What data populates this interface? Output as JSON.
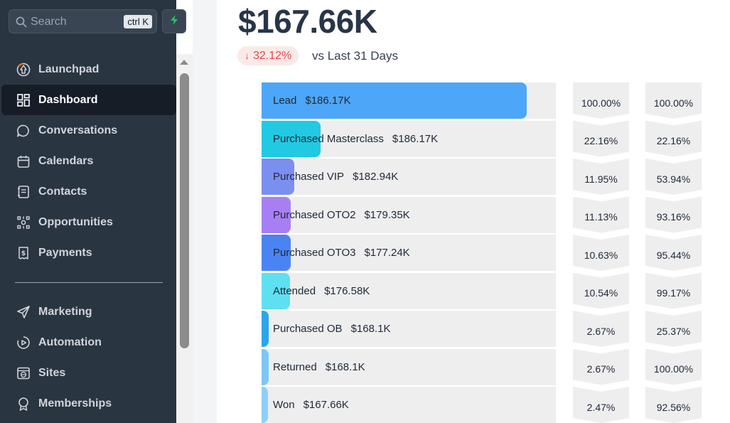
{
  "search": {
    "label": "Search",
    "shortcut": "ctrl K"
  },
  "nav": {
    "primary": [
      {
        "label": "Launchpad",
        "icon": "launchpad-icon",
        "active": false
      },
      {
        "label": "Dashboard",
        "icon": "dashboard-icon",
        "active": true
      },
      {
        "label": "Conversations",
        "icon": "chat-icon",
        "active": false
      },
      {
        "label": "Calendars",
        "icon": "calendar-icon",
        "active": false
      },
      {
        "label": "Contacts",
        "icon": "contacts-icon",
        "active": false
      },
      {
        "label": "Opportunities",
        "icon": "opportunities-icon",
        "active": false
      },
      {
        "label": "Payments",
        "icon": "payments-icon",
        "active": false
      }
    ],
    "secondary": [
      {
        "label": "Marketing",
        "icon": "send-icon",
        "active": false
      },
      {
        "label": "Automation",
        "icon": "automation-icon",
        "active": false
      },
      {
        "label": "Sites",
        "icon": "globe-icon",
        "active": false
      },
      {
        "label": "Memberships",
        "icon": "badge-icon",
        "active": false
      }
    ]
  },
  "summary": {
    "total": "$167.66K",
    "change": "32.12%",
    "change_direction": "down",
    "comparison": "vs Last 31 Days"
  },
  "colors": {
    "accent_down": "#e5484d",
    "sidebar_bg": "#2a3542",
    "bolt": "#22c55e"
  },
  "funnel": [
    {
      "stage": "Lead",
      "amount": "$186.17K",
      "color": "#4da6f7",
      "fill": 0.9,
      "pct_total": "100.00%",
      "pct_prev": "100.00%"
    },
    {
      "stage": "Purchased Masterclass",
      "amount": "$186.17K",
      "color": "#22c9e3",
      "fill": 0.2,
      "pct_total": "22.16%",
      "pct_prev": "22.16%"
    },
    {
      "stage": "Purchased VIP",
      "amount": "$182.94K",
      "color": "#7b8ff0",
      "fill": 0.11,
      "pct_total": "11.95%",
      "pct_prev": "53.94%"
    },
    {
      "stage": "Purchased OTO2",
      "amount": "$179.35K",
      "color": "#a77ff2",
      "fill": 0.1,
      "pct_total": "11.13%",
      "pct_prev": "93.16%"
    },
    {
      "stage": "Purchased OTO3",
      "amount": "$177.24K",
      "color": "#4a84f2",
      "fill": 0.1,
      "pct_total": "10.63%",
      "pct_prev": "95.44%"
    },
    {
      "stage": "Attended",
      "amount": "$176.58K",
      "color": "#5fdff2",
      "fill": 0.097,
      "pct_total": "10.54%",
      "pct_prev": "99.17%"
    },
    {
      "stage": "Purchased OB",
      "amount": "$168.1K",
      "color": "#2aa6ea",
      "fill": 0.024,
      "pct_total": "2.67%",
      "pct_prev": "25.37%"
    },
    {
      "stage": "Returned",
      "amount": "$168.1K",
      "color": "#7dc7f5",
      "fill": 0.024,
      "pct_total": "2.67%",
      "pct_prev": "100.00%"
    },
    {
      "stage": "Won",
      "amount": "$167.66K",
      "color": "#8ecff7",
      "fill": 0.022,
      "pct_total": "2.47%",
      "pct_prev": "92.56%"
    }
  ]
}
